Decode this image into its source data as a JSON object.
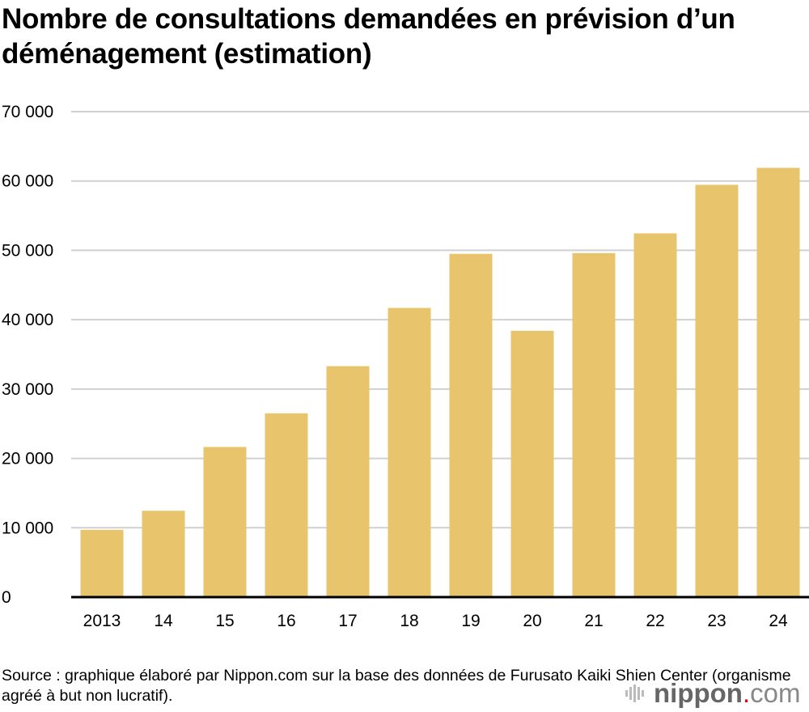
{
  "chart_data": {
    "type": "bar",
    "title": "Nombre de consultations demandées en prévision d’un déménagement (estimation)",
    "xlabel": "",
    "ylabel": "",
    "categories": [
      "2013",
      "14",
      "15",
      "16",
      "17",
      "18",
      "19",
      "20",
      "21",
      "22",
      "23",
      "24"
    ],
    "values": [
      9700,
      12450,
      21650,
      26500,
      33300,
      41700,
      49500,
      38400,
      49600,
      52450,
      59450,
      61900
    ],
    "ylim": [
      0,
      70000
    ],
    "yticks": [
      0,
      10000,
      20000,
      30000,
      40000,
      50000,
      60000,
      70000
    ],
    "ytick_labels": [
      "0",
      "10 000",
      "20 000",
      "30 000",
      "40 000",
      "50 000",
      "60 000",
      "70 000"
    ],
    "grid": true,
    "bar_color": "#e8c46c",
    "grid_color": "#d0d0d0"
  },
  "source": "Source : graphique élaboré par Nippon.com sur la base des données de Furusato Kaiki Shien Center (organisme agréé à but non lucratif).",
  "logo": {
    "name": "nippon",
    "dot": ".",
    "com": "com"
  }
}
